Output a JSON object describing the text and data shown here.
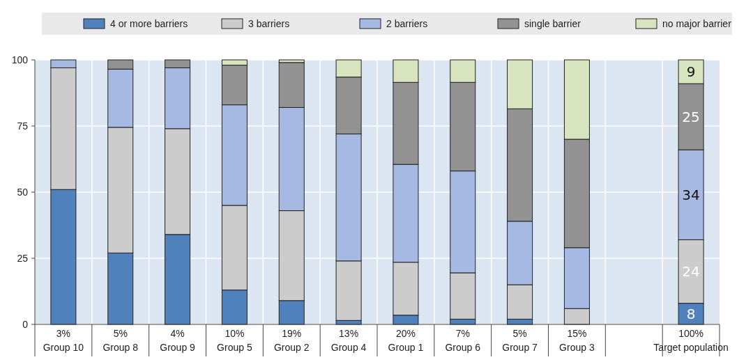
{
  "chart_data": {
    "type": "bar",
    "stacked": true,
    "categories": [
      "3%\nGroup 10",
      "5%\nGroup 8",
      "4%\nGroup 9",
      "10%\nGroup 5",
      "19%\nGroup 2",
      "13%\nGroup 4",
      "20%\nGroup 1",
      "7%\nGroup 6",
      "5%\nGroup 7",
      "15%\nGroup 3",
      null,
      "100%\nTarget population"
    ],
    "series": [
      {
        "name": "4 or more barriers",
        "color": "#4f81bd",
        "values": [
          51,
          27,
          34,
          13,
          9,
          1.5,
          3.5,
          2,
          2,
          0,
          null,
          8
        ],
        "value_labels": [
          null,
          null,
          null,
          null,
          null,
          null,
          null,
          null,
          null,
          null,
          null,
          "8"
        ]
      },
      {
        "name": "3 barriers",
        "color": "#cccccc",
        "values": [
          46,
          47.5,
          40,
          32,
          34,
          22.5,
          20,
          17.5,
          13,
          6,
          null,
          24
        ],
        "value_labels": [
          null,
          null,
          null,
          null,
          null,
          null,
          null,
          null,
          null,
          null,
          null,
          "24"
        ]
      },
      {
        "name": "2 barriers",
        "color": "#a6b9e3",
        "values": [
          3,
          22,
          23,
          38,
          39,
          48,
          37,
          38.5,
          24,
          23,
          null,
          34
        ],
        "value_labels": [
          null,
          null,
          null,
          null,
          null,
          null,
          null,
          null,
          null,
          null,
          null,
          "34"
        ]
      },
      {
        "name": "single barrier",
        "color": "#929292",
        "values": [
          0,
          3.5,
          3,
          15,
          17,
          21.5,
          31,
          33.5,
          42.5,
          41,
          null,
          25
        ],
        "value_labels": [
          null,
          null,
          null,
          null,
          null,
          null,
          null,
          null,
          null,
          null,
          null,
          "25"
        ]
      },
      {
        "name": "no major barrier",
        "color": "#d7e4bd",
        "values": [
          0,
          0,
          0,
          2,
          1,
          6.5,
          8.5,
          8.5,
          18.5,
          30,
          null,
          9
        ],
        "value_labels": [
          null,
          null,
          null,
          null,
          null,
          null,
          null,
          null,
          null,
          null,
          null,
          "9"
        ]
      }
    ],
    "ylim": [
      0,
      100
    ],
    "yticks": [
      0,
      25,
      50,
      75,
      100
    ],
    "grid": true,
    "legend": "top"
  }
}
